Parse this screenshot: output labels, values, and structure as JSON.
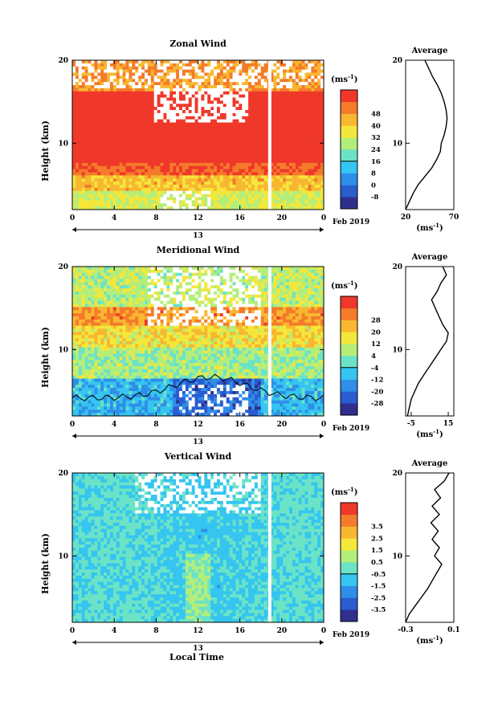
{
  "figure": {
    "x_axis_title": "Local Time",
    "date_label": "Feb 2019",
    "day_label": "13",
    "height_axis_label": "Height (km)",
    "unit_label": "(ms",
    "unit_superscript": "-1",
    "unit_close": ")"
  },
  "chart_data": [
    {
      "type": "heatmap",
      "title": "Zonal Wind",
      "xlabel": "Local Time",
      "ylabel": "Height (km)",
      "xlim": [
        0,
        24
      ],
      "ylim": [
        2,
        20
      ],
      "x_ticks": [
        "0",
        "4",
        "8",
        "12",
        "16",
        "20",
        "0"
      ],
      "y_ticks": [
        "10",
        "20"
      ],
      "colorbar_label": "(ms-1)",
      "colorbar_ticks": [
        "-8",
        "0",
        "8",
        "16",
        "24",
        "32",
        "40",
        "48"
      ],
      "colorbar_colors": [
        "#2f2f8e",
        "#2a5ccf",
        "#2f8ee8",
        "#35c5f0",
        "#6be3c6",
        "#b4ee7a",
        "#f4e73b",
        "#f8b731",
        "#f47b2a",
        "#f0382a"
      ],
      "profile": {
        "title": "Average",
        "xlabel": "(ms-1)",
        "x_ticks": [
          "20",
          "70"
        ],
        "xlim": [
          20,
          70
        ],
        "y_ticks": [
          "10",
          "20"
        ],
        "points": [
          [
            20,
            2
          ],
          [
            24,
            3
          ],
          [
            28,
            4
          ],
          [
            33,
            5
          ],
          [
            40,
            6
          ],
          [
            47,
            7
          ],
          [
            52,
            8
          ],
          [
            56,
            9
          ],
          [
            57,
            10
          ],
          [
            60,
            11
          ],
          [
            62,
            12
          ],
          [
            63,
            13
          ],
          [
            62,
            14
          ],
          [
            60,
            15
          ],
          [
            57,
            16
          ],
          [
            53,
            17
          ],
          [
            48,
            18
          ],
          [
            44,
            19
          ],
          [
            40,
            20
          ]
        ]
      }
    },
    {
      "type": "heatmap",
      "title": "Meridional Wind",
      "xlabel": "Local Time",
      "ylabel": "Height (km)",
      "xlim": [
        0,
        24
      ],
      "ylim": [
        2,
        20
      ],
      "x_ticks": [
        "0",
        "4",
        "8",
        "12",
        "16",
        "20",
        "0"
      ],
      "y_ticks": [
        "10",
        "20"
      ],
      "colorbar_label": "(ms-1)",
      "colorbar_ticks": [
        "-28",
        "-20",
        "-12",
        "-4",
        "4",
        "12",
        "20",
        "28"
      ],
      "colorbar_colors": [
        "#2f2f8e",
        "#2a5ccf",
        "#2f8ee8",
        "#35c5f0",
        "#6be3c6",
        "#b4ee7a",
        "#f4e73b",
        "#f8b731",
        "#f47b2a",
        "#f0382a"
      ],
      "profile": {
        "title": "Average",
        "xlabel": "(ms-1)",
        "x_ticks": [
          "-5",
          "15"
        ],
        "xlim": [
          -8,
          18
        ],
        "y_ticks": [
          "10",
          "20"
        ],
        "points": [
          [
            -7,
            2
          ],
          [
            -6,
            3
          ],
          [
            -5,
            4
          ],
          [
            -3,
            5
          ],
          [
            -1,
            6
          ],
          [
            2,
            7
          ],
          [
            5,
            8
          ],
          [
            8,
            9
          ],
          [
            11,
            10
          ],
          [
            14,
            11
          ],
          [
            15,
            12
          ],
          [
            12,
            13
          ],
          [
            10,
            14
          ],
          [
            8,
            15
          ],
          [
            6,
            16
          ],
          [
            9,
            17
          ],
          [
            11,
            18
          ],
          [
            14,
            19
          ],
          [
            12,
            20
          ]
        ]
      }
    },
    {
      "type": "heatmap",
      "title": "Vertical Wind",
      "xlabel": "Local Time",
      "ylabel": "Height (km)",
      "xlim": [
        0,
        24
      ],
      "ylim": [
        2,
        20
      ],
      "x_ticks": [
        "0",
        "4",
        "8",
        "12",
        "16",
        "20",
        "0"
      ],
      "y_ticks": [
        "10",
        "20"
      ],
      "colorbar_label": "(ms-1)",
      "colorbar_ticks": [
        "-3.5",
        "-2.5",
        "-1.5",
        "-0.5",
        "0.5",
        "1.5",
        "2.5",
        "3.5"
      ],
      "colorbar_colors": [
        "#2f2f8e",
        "#2a5ccf",
        "#2f8ee8",
        "#35c5f0",
        "#6be3c6",
        "#b4ee7a",
        "#f4e73b",
        "#f8b731",
        "#f47b2a",
        "#f0382a"
      ],
      "profile": {
        "title": "Average",
        "xlabel": "(ms-1)",
        "x_ticks": [
          "-0.3",
          "0.1"
        ],
        "xlim": [
          -0.3,
          0.1
        ],
        "y_ticks": [
          "10",
          "20"
        ],
        "points": [
          [
            -0.3,
            2
          ],
          [
            -0.27,
            3
          ],
          [
            -0.22,
            4
          ],
          [
            -0.17,
            5
          ],
          [
            -0.12,
            6
          ],
          [
            -0.08,
            7
          ],
          [
            -0.04,
            8
          ],
          [
            0.0,
            9
          ],
          [
            -0.06,
            10
          ],
          [
            -0.02,
            11
          ],
          [
            -0.08,
            12
          ],
          [
            -0.03,
            13
          ],
          [
            -0.09,
            14
          ],
          [
            -0.02,
            15
          ],
          [
            -0.08,
            16
          ],
          [
            -0.01,
            17
          ],
          [
            -0.06,
            18
          ],
          [
            0.02,
            19
          ],
          [
            0.06,
            20
          ]
        ]
      }
    }
  ]
}
